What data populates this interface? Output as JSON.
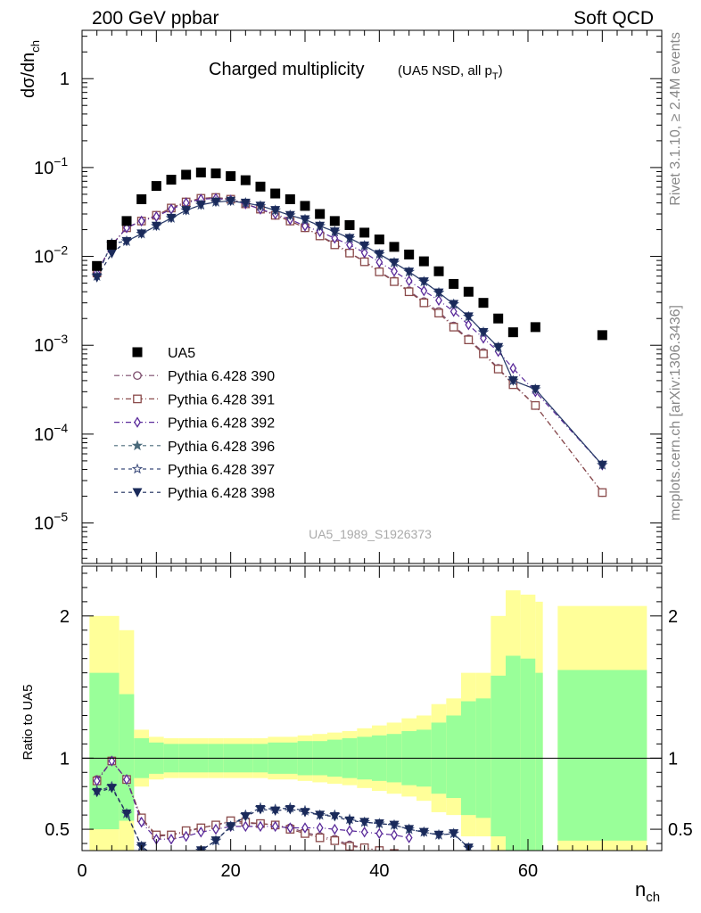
{
  "header": {
    "left": "200 GeV ppbar",
    "right": "Soft QCD",
    "side_top": "Rivet 3.1.10, ≥ 2.4M events",
    "side_bottom": "mcplots.cern.ch [arXiv:1306.3436]",
    "plot_title": "Charged multiplicity",
    "plot_subtitle_main": "(UA5 NSD, all p",
    "plot_subtitle_sub": "T",
    "plot_subtitle_end": ")",
    "watermark": "UA5_1989_S1926373"
  },
  "axes": {
    "y_main_label": "dσ/dn",
    "y_main_label_sub": "ch",
    "y_ratio_label": "Ratio to UA5",
    "x_label": "n",
    "x_label_sub": "ch",
    "y_main_ticks": [
      {
        "base": "10",
        "exp": "−5",
        "value": 1e-05
      },
      {
        "base": "10",
        "exp": "−4",
        "value": 0.0001
      },
      {
        "base": "10",
        "exp": "−3",
        "value": 0.001
      },
      {
        "base": "10",
        "exp": "−2",
        "value": 0.01
      },
      {
        "base": "10",
        "exp": "−1",
        "value": 0.1
      },
      {
        "base": "1",
        "exp": "",
        "value": 1
      }
    ],
    "y_ratio_ticks": [
      {
        "label": "0.5",
        "value": 0.5
      },
      {
        "label": "1",
        "value": 1
      },
      {
        "label": "2",
        "value": 2
      }
    ],
    "x_ticks": [
      {
        "label": "0",
        "value": 0
      },
      {
        "label": "20",
        "value": 20
      },
      {
        "label": "40",
        "value": 40
      },
      {
        "label": "60",
        "value": 60
      }
    ]
  },
  "chart_data": {
    "type": "scatter",
    "x_range": [
      0,
      78
    ],
    "y_main_range_log": [
      3.5e-06,
      3.5
    ],
    "y_ratio_range": [
      0.35,
      2.35
    ],
    "legend_placement": "lower-left of main panel",
    "data": {
      "name": "UA5",
      "color": "#000000",
      "x": [
        2,
        4,
        6,
        8,
        10,
        12,
        14,
        16,
        18,
        20,
        22,
        24,
        26,
        28,
        30,
        32,
        34,
        36,
        38,
        40,
        42,
        44,
        46,
        48,
        50,
        52,
        54,
        56,
        58,
        61,
        70
      ],
      "y": [
        0.0078,
        0.0135,
        0.025,
        0.044,
        0.062,
        0.073,
        0.083,
        0.088,
        0.086,
        0.08,
        0.072,
        0.061,
        0.051,
        0.044,
        0.037,
        0.03,
        0.025,
        0.0225,
        0.0185,
        0.0155,
        0.0128,
        0.0105,
        0.0088,
        0.0068,
        0.0049,
        0.004,
        0.003,
        0.002,
        0.0014,
        0.0016,
        0.0013
      ]
    },
    "bands": {
      "outer_color": "#ffff99",
      "inner_color": "#99ff99",
      "bins": [
        {
          "x0": 1,
          "x1": 3,
          "lo": 0.35,
          "hi": 2.0,
          "ilo": 0.5,
          "ihi": 1.6
        },
        {
          "x0": 3,
          "x1": 5,
          "lo": 0.35,
          "hi": 2.0,
          "ilo": 0.5,
          "ihi": 1.6
        },
        {
          "x0": 5,
          "x1": 7,
          "lo": 0.35,
          "hi": 1.9,
          "ilo": 0.56,
          "ihi": 1.45
        },
        {
          "x0": 7,
          "x1": 9,
          "lo": 0.8,
          "hi": 1.2,
          "ilo": 0.86,
          "ihi": 1.14
        },
        {
          "x0": 9,
          "x1": 11,
          "lo": 0.85,
          "hi": 1.15,
          "ilo": 0.89,
          "ihi": 1.11
        },
        {
          "x0": 11,
          "x1": 13,
          "lo": 0.86,
          "hi": 1.14,
          "ilo": 0.9,
          "ihi": 1.1
        },
        {
          "x0": 13,
          "x1": 15,
          "lo": 0.86,
          "hi": 1.14,
          "ilo": 0.9,
          "ihi": 1.1
        },
        {
          "x0": 15,
          "x1": 17,
          "lo": 0.86,
          "hi": 1.14,
          "ilo": 0.9,
          "ihi": 1.1
        },
        {
          "x0": 17,
          "x1": 19,
          "lo": 0.86,
          "hi": 1.14,
          "ilo": 0.9,
          "ihi": 1.1
        },
        {
          "x0": 19,
          "x1": 21,
          "lo": 0.86,
          "hi": 1.14,
          "ilo": 0.9,
          "ihi": 1.1
        },
        {
          "x0": 21,
          "x1": 23,
          "lo": 0.86,
          "hi": 1.14,
          "ilo": 0.9,
          "ihi": 1.1
        },
        {
          "x0": 23,
          "x1": 25,
          "lo": 0.86,
          "hi": 1.14,
          "ilo": 0.9,
          "ihi": 1.1
        },
        {
          "x0": 25,
          "x1": 27,
          "lo": 0.85,
          "hi": 1.15,
          "ilo": 0.89,
          "ihi": 1.11
        },
        {
          "x0": 27,
          "x1": 29,
          "lo": 0.85,
          "hi": 1.15,
          "ilo": 0.89,
          "ihi": 1.11
        },
        {
          "x0": 29,
          "x1": 31,
          "lo": 0.84,
          "hi": 1.16,
          "ilo": 0.88,
          "ihi": 1.12
        },
        {
          "x0": 31,
          "x1": 33,
          "lo": 0.83,
          "hi": 1.17,
          "ilo": 0.88,
          "ihi": 1.12
        },
        {
          "x0": 33,
          "x1": 35,
          "lo": 0.82,
          "hi": 1.18,
          "ilo": 0.87,
          "ihi": 1.13
        },
        {
          "x0": 35,
          "x1": 37,
          "lo": 0.81,
          "hi": 1.19,
          "ilo": 0.86,
          "ihi": 1.14
        },
        {
          "x0": 37,
          "x1": 39,
          "lo": 0.79,
          "hi": 1.21,
          "ilo": 0.85,
          "ihi": 1.15
        },
        {
          "x0": 39,
          "x1": 41,
          "lo": 0.77,
          "hi": 1.23,
          "ilo": 0.84,
          "ihi": 1.16
        },
        {
          "x0": 41,
          "x1": 43,
          "lo": 0.75,
          "hi": 1.25,
          "ilo": 0.83,
          "ihi": 1.17
        },
        {
          "x0": 43,
          "x1": 45,
          "lo": 0.73,
          "hi": 1.28,
          "ilo": 0.81,
          "ihi": 1.19
        },
        {
          "x0": 45,
          "x1": 47,
          "lo": 0.7,
          "hi": 1.3,
          "ilo": 0.8,
          "ihi": 1.2
        },
        {
          "x0": 47,
          "x1": 49,
          "lo": 0.62,
          "hi": 1.38,
          "ilo": 0.75,
          "ihi": 1.25
        },
        {
          "x0": 49,
          "x1": 51,
          "lo": 0.6,
          "hi": 1.42,
          "ilo": 0.72,
          "ihi": 1.3
        },
        {
          "x0": 51,
          "x1": 53,
          "lo": 0.45,
          "hi": 1.6,
          "ilo": 0.6,
          "ihi": 1.4
        },
        {
          "x0": 53,
          "x1": 55,
          "lo": 0.45,
          "hi": 1.6,
          "ilo": 0.58,
          "ihi": 1.42
        },
        {
          "x0": 55,
          "x1": 57,
          "lo": 0.35,
          "hi": 2.0,
          "ilo": 0.45,
          "ihi": 1.58
        },
        {
          "x0": 57,
          "x1": 59,
          "lo": 0.35,
          "hi": 2.18,
          "ilo": 0.35,
          "ihi": 1.72
        },
        {
          "x0": 59,
          "x1": 61,
          "lo": 0.35,
          "hi": 2.15,
          "ilo": 0.35,
          "ihi": 1.7
        },
        {
          "x0": 61,
          "x1": 62,
          "lo": 0.35,
          "hi": 2.1,
          "ilo": 0.35,
          "ihi": 1.6
        },
        {
          "x0": 64,
          "x1": 76,
          "lo": 0.35,
          "hi": 2.07,
          "ilo": 0.42,
          "ihi": 1.62
        }
      ]
    },
    "series": [
      {
        "name": "Pythia 6.428 390",
        "color": "#7a4a6a",
        "marker": "circle",
        "dash": "6,3,1,3",
        "x": [
          2,
          4,
          6,
          8,
          10,
          12,
          14,
          16,
          18,
          20,
          22,
          24,
          26,
          28,
          30,
          32,
          34,
          36,
          38,
          40,
          42,
          44,
          46,
          48,
          50,
          52,
          54,
          56,
          58,
          61,
          70
        ],
        "y": [
          0.0066,
          0.0135,
          0.021,
          0.025,
          0.029,
          0.035,
          0.041,
          0.045,
          0.046,
          0.044,
          0.039,
          0.034,
          0.029,
          0.025,
          0.021,
          0.017,
          0.014,
          0.011,
          0.0088,
          0.0068,
          0.0053,
          0.0041,
          0.0031,
          0.0024,
          0.00165,
          0.00118,
          0.00083,
          0.00055,
          0.00037,
          0.00021,
          2.2e-05
        ],
        "r": [
          0.85,
          0.98,
          0.85,
          0.57,
          0.45,
          0.46,
          0.48,
          0.51,
          0.53,
          0.55,
          0.54,
          0.54,
          0.53,
          0.51,
          0.48,
          0.45,
          0.43,
          0.39,
          0.37,
          0.35,
          0.33,
          0.31
        ]
      },
      {
        "name": "Pythia 6.428 391",
        "color": "#8a4a4a",
        "marker": "square",
        "dash": "6,3,1,3",
        "x": [
          2,
          4,
          6,
          8,
          10,
          12,
          14,
          16,
          18,
          20,
          22,
          24,
          26,
          28,
          30,
          32,
          34,
          36,
          38,
          40,
          42,
          44,
          46,
          48,
          50,
          52,
          54,
          56,
          58,
          61,
          70
        ],
        "y": [
          0.0065,
          0.0133,
          0.021,
          0.025,
          0.029,
          0.035,
          0.041,
          0.045,
          0.046,
          0.044,
          0.039,
          0.034,
          0.029,
          0.025,
          0.021,
          0.017,
          0.0135,
          0.0109,
          0.0087,
          0.0067,
          0.0052,
          0.004,
          0.003,
          0.0023,
          0.0016,
          0.00115,
          0.0008,
          0.00054,
          0.00036,
          0.00021,
          2.2e-05
        ],
        "r": [
          0.84,
          0.98,
          0.85,
          0.58,
          0.46,
          0.46,
          0.49,
          0.51,
          0.53,
          0.56,
          0.55,
          0.54,
          0.53,
          0.5,
          0.47,
          0.44,
          0.42,
          0.38,
          0.37,
          0.35,
          0.33,
          0.31
        ]
      },
      {
        "name": "Pythia 6.428 392",
        "color": "#5a2a9a",
        "marker": "diamond",
        "dash": "6,3,1,3",
        "x": [
          2,
          4,
          6,
          8,
          10,
          12,
          14,
          16,
          18,
          20,
          22,
          24,
          26,
          28,
          30,
          32,
          34,
          36,
          38,
          40,
          42,
          44,
          46,
          48,
          50,
          52,
          54,
          56,
          58,
          61,
          70
        ],
        "y": [
          0.0065,
          0.0133,
          0.021,
          0.025,
          0.028,
          0.034,
          0.04,
          0.044,
          0.045,
          0.043,
          0.039,
          0.034,
          0.03,
          0.026,
          0.022,
          0.019,
          0.016,
          0.0135,
          0.011,
          0.0086,
          0.0068,
          0.0053,
          0.0041,
          0.0032,
          0.0024,
          0.0017,
          0.0012,
          0.00085,
          0.00055,
          0.0003,
          4.5e-05
        ],
        "r": [
          0.84,
          0.98,
          0.85,
          0.55,
          0.43,
          0.43,
          0.45,
          0.48,
          0.5,
          0.52,
          0.52,
          0.52,
          0.52,
          0.51,
          0.51,
          0.51,
          0.5,
          0.49,
          0.48,
          0.47,
          0.46,
          0.44
        ]
      },
      {
        "name": "Pythia 6.428 396",
        "color": "#4a6a7a",
        "marker": "star",
        "dash": "4,4",
        "x": [
          2,
          4,
          6,
          8,
          10,
          12,
          14,
          16,
          18,
          20,
          22,
          24,
          26,
          28,
          30,
          32,
          34,
          36,
          38,
          40,
          42,
          44,
          46,
          48,
          50,
          52,
          54,
          56,
          58,
          61,
          70
        ],
        "y": [
          0.006,
          0.014,
          0.0148,
          0.018,
          0.022,
          0.027,
          0.033,
          0.038,
          0.041,
          0.042,
          0.04,
          0.037,
          0.033,
          0.029,
          0.026,
          0.022,
          0.019,
          0.016,
          0.0132,
          0.0106,
          0.0085,
          0.0067,
          0.0052,
          0.0039,
          0.0029,
          0.0021,
          0.0014,
          0.00095,
          0.0004,
          0.00032,
          4.5e-05
        ],
        "r": [
          0.77,
          0.8,
          0.61,
          0.38,
          0.3,
          0.3,
          0.32,
          0.35,
          0.42,
          0.52,
          0.6,
          0.65,
          0.64,
          0.65,
          0.63,
          0.6,
          0.6,
          0.57,
          0.55,
          0.54,
          0.53,
          0.5,
          0.48,
          0.46,
          0.47,
          0.37
        ]
      },
      {
        "name": "Pythia 6.428 397",
        "color": "#3a4a7a",
        "marker": "star-open",
        "dash": "4,4",
        "x": [
          2,
          4,
          6,
          8,
          10,
          12,
          14,
          16,
          18,
          20,
          22,
          24,
          26,
          28,
          30,
          32,
          34,
          36,
          38,
          40,
          42,
          44,
          46,
          48,
          50,
          52,
          54,
          56,
          58,
          61,
          70
        ],
        "y": [
          0.006,
          0.014,
          0.0148,
          0.018,
          0.022,
          0.027,
          0.033,
          0.038,
          0.041,
          0.042,
          0.04,
          0.037,
          0.033,
          0.029,
          0.026,
          0.022,
          0.019,
          0.016,
          0.0132,
          0.0106,
          0.0085,
          0.0067,
          0.0052,
          0.0039,
          0.0029,
          0.0021,
          0.0014,
          0.00095,
          0.0004,
          0.00032,
          4.5e-05
        ],
        "r": [
          0.77,
          0.8,
          0.61,
          0.38,
          0.3,
          0.3,
          0.32,
          0.35,
          0.42,
          0.52,
          0.6,
          0.65,
          0.64,
          0.65,
          0.63,
          0.6,
          0.6,
          0.57,
          0.55,
          0.54,
          0.53,
          0.5,
          0.48,
          0.46,
          0.47,
          0.37
        ]
      },
      {
        "name": "Pythia 6.428 398",
        "color": "#1a2a5a",
        "marker": "triangle-down",
        "dash": "4,4",
        "x": [
          2,
          4,
          6,
          8,
          10,
          12,
          14,
          16,
          18,
          20,
          22,
          24,
          26,
          28,
          30,
          32,
          34,
          36,
          38,
          40,
          42,
          44,
          46,
          48,
          50,
          52,
          54,
          56,
          58,
          61,
          70
        ],
        "y": [
          0.0058,
          0.0108,
          0.0148,
          0.018,
          0.022,
          0.027,
          0.033,
          0.038,
          0.041,
          0.042,
          0.04,
          0.037,
          0.033,
          0.029,
          0.026,
          0.022,
          0.019,
          0.016,
          0.0132,
          0.0106,
          0.0085,
          0.0067,
          0.0052,
          0.0039,
          0.0029,
          0.0021,
          0.0014,
          0.00095,
          0.0004,
          0.00032,
          4.5e-05
        ],
        "r": [
          0.76,
          0.79,
          0.61,
          0.38,
          0.3,
          0.3,
          0.32,
          0.35,
          0.42,
          0.52,
          0.59,
          0.64,
          0.63,
          0.64,
          0.62,
          0.6,
          0.59,
          0.56,
          0.55,
          0.54,
          0.53,
          0.5,
          0.48,
          0.46,
          0.47,
          0.37
        ]
      }
    ]
  }
}
